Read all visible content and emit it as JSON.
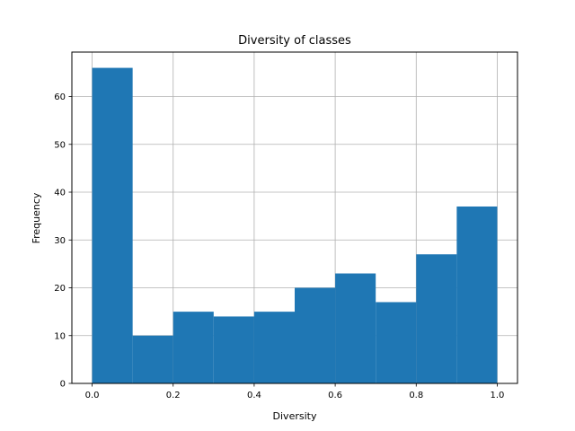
{
  "chart_data": {
    "type": "bar",
    "title": "Diversity of classes",
    "xlabel": "Diversity",
    "ylabel": "Frequency",
    "bin_edges": [
      0.0,
      0.1,
      0.2,
      0.3,
      0.4,
      0.5,
      0.6,
      0.7,
      0.8,
      0.9,
      1.0
    ],
    "values": [
      66,
      10,
      15,
      14,
      15,
      20,
      23,
      17,
      27,
      37
    ],
    "xlim": [
      -0.05,
      1.05
    ],
    "ylim": [
      0,
      69.3
    ],
    "xticks": [
      0.0,
      0.2,
      0.4,
      0.6,
      0.8,
      1.0
    ],
    "xtick_labels": [
      "0.0",
      "0.2",
      "0.4",
      "0.6",
      "0.8",
      "1.0"
    ],
    "yticks": [
      0,
      10,
      20,
      30,
      40,
      50,
      60
    ],
    "ytick_labels": [
      "0",
      "10",
      "20",
      "30",
      "40",
      "50",
      "60"
    ],
    "grid": true,
    "bar_color": "#1f77b4",
    "grid_color": "#b0b0b0"
  }
}
